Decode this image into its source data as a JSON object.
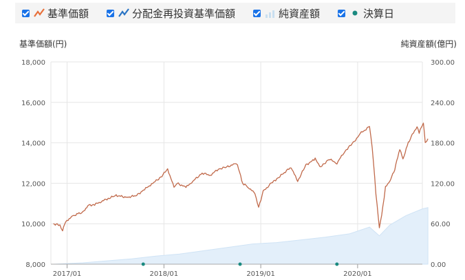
{
  "legend": [
    {
      "label": "基準価額",
      "icon": "line-orange-icon",
      "color": "#e8703a"
    },
    {
      "label": "分配金再投資基準価額",
      "icon": "line-blue-icon",
      "color": "#2a74c4"
    },
    {
      "label": "純資産額",
      "icon": "area-bars-icon",
      "color": "#c9dff0"
    },
    {
      "label": "決算日",
      "icon": "dot-teal-icon",
      "color": "#1a8a80"
    }
  ],
  "colors": {
    "nav_line": "#c0694a",
    "area_fill": "#e3effa",
    "area_stroke": "#cfe3f5",
    "grid": "#e6e6e6",
    "dot": "#1a8a80"
  },
  "chart_data": {
    "type": "line",
    "left_axis": {
      "title": "基準価額(円)",
      "min": 8000,
      "max": 18000,
      "ticks": [
        "8,000",
        "10,000",
        "12,000",
        "14,000",
        "16,000",
        "18,000"
      ]
    },
    "right_axis": {
      "title": "純資産額(億円)",
      "min": 0,
      "max": 300,
      "ticks": [
        "0.00",
        "60.00",
        "120.00",
        "180.00",
        "240.00",
        "300.00"
      ]
    },
    "x_ticks": [
      "2017/01",
      "2018/01",
      "2019/01",
      "2020/01"
    ],
    "x_range": [
      "2016/11",
      "2020/09"
    ],
    "series": [
      {
        "name": "基準価額",
        "axis": "left",
        "points": [
          [
            "2016/11/10",
            10000
          ],
          [
            "2016/11/25",
            9950
          ],
          [
            "2016/12/05",
            9900
          ],
          [
            "2016/12/15",
            9650
          ],
          [
            "2016/12/22",
            10000
          ],
          [
            "2017/01/05",
            10200
          ],
          [
            "2017/01/25",
            10400
          ],
          [
            "2017/02/15",
            10500
          ],
          [
            "2017/03/05",
            10600
          ],
          [
            "2017/03/20",
            10900
          ],
          [
            "2017/04/15",
            10950
          ],
          [
            "2017/05/10",
            11100
          ],
          [
            "2017/06/05",
            11250
          ],
          [
            "2017/07/05",
            11400
          ],
          [
            "2017/08/15",
            11300
          ],
          [
            "2017/09/20",
            11400
          ],
          [
            "2017/10/20",
            11700
          ],
          [
            "2017/11/20",
            12000
          ],
          [
            "2017/12/20",
            12300
          ],
          [
            "2018/01/15",
            12700
          ],
          [
            "2018/02/08",
            11800
          ],
          [
            "2018/02/20",
            12000
          ],
          [
            "2018/03/25",
            11800
          ],
          [
            "2018/04/20",
            12100
          ],
          [
            "2018/05/25",
            12500
          ],
          [
            "2018/06/25",
            12400
          ],
          [
            "2018/07/25",
            12700
          ],
          [
            "2018/08/25",
            12800
          ],
          [
            "2018/09/25",
            12950
          ],
          [
            "2018/10/05",
            12900
          ],
          [
            "2018/10/25",
            12000
          ],
          [
            "2018/11/15",
            11800
          ],
          [
            "2018/12/10",
            11500
          ],
          [
            "2018/12/24",
            10800
          ],
          [
            "2019/01/10",
            11600
          ],
          [
            "2019/02/10",
            12000
          ],
          [
            "2019/03/10",
            12300
          ],
          [
            "2019/04/25",
            12800
          ],
          [
            "2019/05/20",
            12100
          ],
          [
            "2019/06/20",
            12900
          ],
          [
            "2019/07/25",
            13200
          ],
          [
            "2019/08/15",
            12800
          ],
          [
            "2019/09/15",
            13200
          ],
          [
            "2019/10/15",
            13000
          ],
          [
            "2019/11/15",
            13600
          ],
          [
            "2019/12/15",
            14000
          ],
          [
            "2020/01/15",
            14500
          ],
          [
            "2020/02/15",
            14800
          ],
          [
            "2020/02/25",
            13800
          ],
          [
            "2020/03/10",
            11500
          ],
          [
            "2020/03/23",
            9800
          ],
          [
            "2020/04/05",
            10800
          ],
          [
            "2020/04/15",
            11800
          ],
          [
            "2020/05/05",
            12200
          ],
          [
            "2020/05/20",
            12700
          ],
          [
            "2020/06/08",
            13700
          ],
          [
            "2020/06/20",
            13200
          ],
          [
            "2020/07/10",
            14000
          ],
          [
            "2020/07/25",
            14400
          ],
          [
            "2020/08/12",
            14800
          ],
          [
            "2020/08/20",
            14500
          ],
          [
            "2020/09/05",
            15000
          ],
          [
            "2020/09/12",
            14000
          ],
          [
            "2020/09/22",
            14200
          ]
        ]
      },
      {
        "name": "純資産額",
        "axis": "right",
        "type": "area",
        "points": [
          [
            "2016/11/10",
            0
          ],
          [
            "2017/03/01",
            2
          ],
          [
            "2017/06/01",
            5
          ],
          [
            "2017/09/01",
            8
          ],
          [
            "2017/12/01",
            12
          ],
          [
            "2018/03/01",
            15
          ],
          [
            "2018/06/01",
            20
          ],
          [
            "2018/09/01",
            25
          ],
          [
            "2018/12/01",
            30
          ],
          [
            "2019/03/01",
            32
          ],
          [
            "2019/06/01",
            36
          ],
          [
            "2019/09/01",
            40
          ],
          [
            "2019/12/01",
            45
          ],
          [
            "2020/02/15",
            55
          ],
          [
            "2020/03/23",
            42
          ],
          [
            "2020/05/01",
            58
          ],
          [
            "2020/07/01",
            72
          ],
          [
            "2020/09/01",
            82
          ],
          [
            "2020/09/22",
            84
          ]
        ]
      }
    ],
    "settlement_dates": [
      "2017/10/15",
      "2018/10/15",
      "2019/10/15"
    ]
  }
}
